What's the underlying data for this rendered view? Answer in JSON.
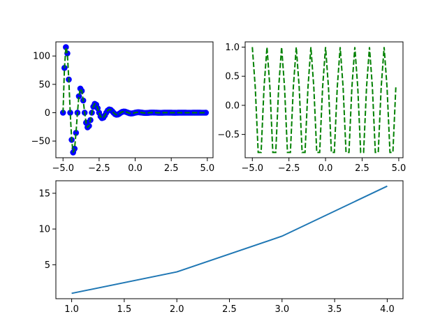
{
  "chart_data": [
    {
      "type": "line",
      "line_style": "dashed",
      "color": "#008000",
      "marker_color": "#0000ff",
      "x": [
        -5,
        -4.9,
        -4.8,
        -4.7,
        -4.6,
        -4.5,
        -4.4,
        -4.3,
        -4.2,
        -4.1,
        -4,
        -3.9,
        -3.8,
        -3.7,
        -3.6,
        -3.5,
        -3.4,
        -3.3,
        -3.2,
        -3.1,
        -3,
        -2.9,
        -2.8,
        -2.7,
        -2.6,
        -2.5,
        -2.4,
        -2.3,
        -2.2,
        -2.1,
        -2,
        -1.9,
        -1.8,
        -1.7,
        -1.6,
        -1.5,
        -1.4,
        -1.3,
        -1.2,
        -1.1,
        -1,
        -0.9,
        -0.8,
        -0.7,
        -0.6,
        -0.5,
        -0.4,
        -0.3,
        -0.2,
        -0.1,
        0,
        0.1,
        0.2,
        0.3,
        0.4,
        0.5,
        0.6,
        0.7,
        0.8,
        0.9,
        1,
        1.1,
        1.2,
        1.3,
        1.4,
        1.5,
        1.6,
        1.7,
        1.8,
        1.9,
        2,
        2.1,
        2.2,
        2.3,
        2.4,
        2.5,
        2.6,
        2.7,
        2.8,
        2.9,
        3,
        3.1,
        3.2,
        3.3,
        3.4,
        3.5,
        3.6,
        3.7,
        3.8,
        3.9,
        4,
        4.1,
        4.2,
        4.3,
        4.4,
        4.5,
        4.6,
        4.7,
        4.8,
        4.9
      ],
      "values": [
        0,
        78.93,
        115.57,
        104.57,
        58.47,
        0,
        -47.88,
        -70.1,
        -63.43,
        -35.47,
        0,
        29.04,
        42.51,
        38.47,
        21.51,
        0,
        -17.61,
        -25.78,
        -23.33,
        -13.05,
        0,
        10.68,
        15.64,
        14.15,
        7.91,
        0,
        -6.48,
        -9.48,
        -8.59,
        -4.8,
        0,
        3.93,
        5.75,
        5.21,
        2.91,
        0,
        -2.38,
        -3.49,
        -3.16,
        -1.77,
        0,
        1.45,
        2.12,
        1.92,
        1.07,
        0,
        -0.88,
        -1.28,
        -1.16,
        -0.65,
        0,
        0.53,
        0.78,
        0.7,
        0.39,
        0,
        -0.32,
        -0.47,
        -0.43,
        -0.24,
        0,
        0.2,
        0.29,
        0.26,
        0.15,
        0,
        -0.12,
        -0.17,
        -0.16,
        -0.09,
        0,
        0.07,
        0.11,
        0.1,
        0.05,
        0,
        -0.04,
        -0.06,
        -0.06,
        -0.03,
        0,
        0.03,
        0.04,
        0.04,
        0.02,
        0,
        -0.02,
        -0.02,
        -0.02,
        -0.01,
        0,
        0.01,
        0.01,
        0.01,
        0.01,
        0,
        -0.01,
        -0.01,
        -0.01,
        0
      ],
      "xlim": [
        -5.495,
        5.395
      ],
      "ylim": [
        -79.4,
        124.9
      ],
      "xticks": [
        {
          "value": -5,
          "label": "−5.0"
        },
        {
          "value": -2.5,
          "label": "−2.5"
        },
        {
          "value": 0,
          "label": "0.0"
        },
        {
          "value": 2.5,
          "label": "2.5"
        },
        {
          "value": 5,
          "label": "5.0"
        }
      ],
      "yticks": [
        {
          "value": -50,
          "label": "−50"
        },
        0,
        50,
        100
      ]
    },
    {
      "type": "line",
      "line_style": "dashed",
      "color": "#008000",
      "x": [
        -5,
        -4.8,
        -4.6,
        -4.4,
        -4.2,
        -4,
        -3.8,
        -3.6,
        -3.4,
        -3.2,
        -3,
        -2.8,
        -2.6,
        -2.4,
        -2.2,
        -2,
        -1.8,
        -1.6,
        -1.4,
        -1.2,
        -1,
        -0.8,
        -0.6,
        -0.4,
        -0.2,
        0,
        0.2,
        0.4,
        0.6,
        0.8,
        1,
        1.2,
        1.4,
        1.6,
        1.8,
        2,
        2.2,
        2.4,
        2.6,
        2.8,
        3,
        3.2,
        3.4,
        3.6,
        3.8,
        4,
        4.2,
        4.4,
        4.6,
        4.8
      ],
      "values": [
        1,
        0.309,
        -0.809,
        -0.809,
        0.309,
        1,
        0.309,
        -0.809,
        -0.809,
        0.309,
        1,
        0.309,
        -0.809,
        -0.809,
        0.309,
        1,
        0.309,
        -0.809,
        -0.809,
        0.309,
        1,
        0.309,
        -0.809,
        -0.809,
        0.309,
        1,
        0.309,
        -0.809,
        -0.809,
        0.309,
        1,
        0.309,
        -0.809,
        -0.809,
        0.309,
        1,
        0.309,
        -0.809,
        -0.809,
        0.309,
        1,
        0.309,
        -0.809,
        -0.809,
        0.309,
        1,
        0.309,
        -0.809,
        -0.809,
        0.309
      ],
      "xlim": [
        -5.49,
        5.29
      ],
      "ylim": [
        -0.9,
        1.09
      ],
      "xticks": [
        {
          "value": -5,
          "label": "−5.0"
        },
        {
          "value": -2.5,
          "label": "−2.5"
        },
        {
          "value": 0,
          "label": "0.0"
        },
        {
          "value": 2.5,
          "label": "2.5"
        },
        {
          "value": 5,
          "label": "5.0"
        }
      ],
      "yticks": [
        {
          "value": -0.5,
          "label": "−0.5"
        },
        {
          "value": 0,
          "label": "0.0"
        },
        {
          "value": 0.5,
          "label": "0.5"
        },
        {
          "value": 1,
          "label": "1.0"
        }
      ]
    },
    {
      "type": "line",
      "line_style": "solid",
      "color": "#1f77b4",
      "x": [
        1,
        2,
        3,
        4
      ],
      "values": [
        1,
        4,
        9,
        16
      ],
      "xlim": [
        0.85,
        4.15
      ],
      "ylim": [
        0.25,
        16.75
      ],
      "xticks": [
        {
          "value": 1,
          "label": "1.0"
        },
        {
          "value": 1.5,
          "label": "1.5"
        },
        {
          "value": 2,
          "label": "2.0"
        },
        {
          "value": 2.5,
          "label": "2.5"
        },
        {
          "value": 3,
          "label": "3.0"
        },
        {
          "value": 3.5,
          "label": "3.5"
        },
        {
          "value": 4,
          "label": "4.0"
        }
      ],
      "yticks": [
        5,
        10,
        15
      ]
    }
  ]
}
